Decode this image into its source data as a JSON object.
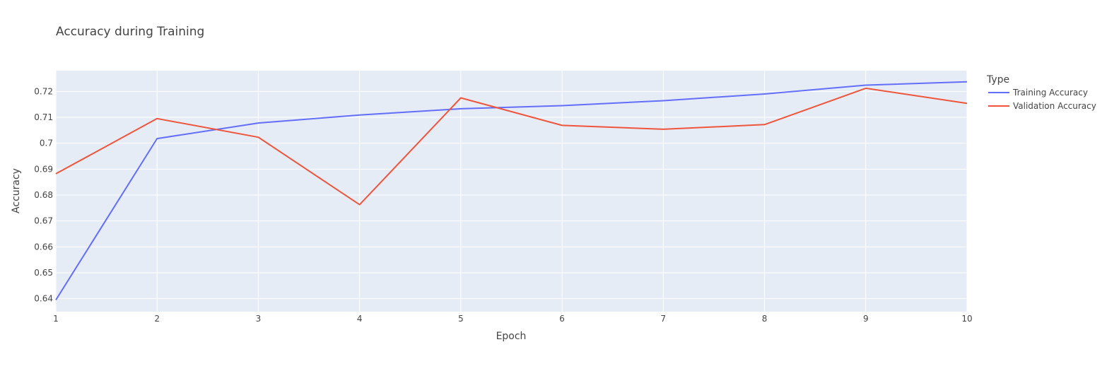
{
  "chart_data": {
    "type": "line",
    "title": "Accuracy during Training",
    "xlabel": "Epoch",
    "ylabel": "Accuracy",
    "x": [
      1,
      2,
      3,
      4,
      5,
      6,
      7,
      8,
      9,
      10
    ],
    "xlim": [
      1,
      10
    ],
    "ylim": [
      0.635,
      0.728
    ],
    "yticks": [
      0.64,
      0.65,
      0.66,
      0.67,
      0.68,
      0.69,
      0.7,
      0.71,
      0.72
    ],
    "ytick_labels": [
      "0.64",
      "0.65",
      "0.66",
      "0.67",
      "0.68",
      "0.69",
      "0.7",
      "0.71",
      "0.72"
    ],
    "xtick_labels": [
      "1",
      "2",
      "3",
      "4",
      "5",
      "6",
      "7",
      "8",
      "9",
      "10"
    ],
    "grid": true,
    "legend": {
      "title": "Type",
      "position": "top-right, outside plot"
    },
    "background_color": "#e5ecf6",
    "series": [
      {
        "name": "Training Accuracy",
        "color": "#636efa",
        "values": [
          0.6395,
          0.7018,
          0.7078,
          0.7109,
          0.7133,
          0.7145,
          0.7164,
          0.719,
          0.7224,
          0.7237
        ]
      },
      {
        "name": "Validation Accuracy",
        "color": "#ef553b",
        "values": [
          0.6882,
          0.7095,
          0.7023,
          0.6763,
          0.7175,
          0.7069,
          0.7054,
          0.7072,
          0.7212,
          0.7154
        ]
      }
    ]
  }
}
